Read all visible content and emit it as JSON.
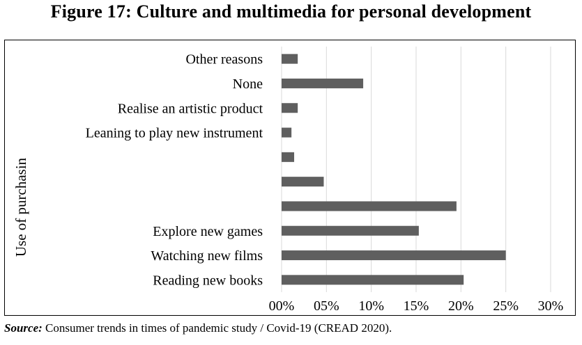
{
  "figure_title": "Figure 17: Culture and multimedia for personal development",
  "source": {
    "label": "Source:",
    "text": " Consumer trends in times of pandemic study / Covid-19 (CREAD 2020)."
  },
  "chart_data": {
    "type": "bar",
    "orientation": "horizontal",
    "ylabel": "Use of purchasin",
    "xlabel": "",
    "categories": [
      "Reading new books",
      "Watching new films",
      "Explore new games",
      "",
      "",
      "",
      "Leaning to play new instrument",
      "Realise an artistic product",
      "None",
      "Other reasons"
    ],
    "values": [
      20.3,
      25.0,
      15.3,
      19.5,
      4.7,
      1.4,
      1.1,
      1.8,
      9.1,
      1.8
    ],
    "xlim": [
      0,
      30
    ],
    "xticks": [
      "00%",
      "05%",
      "10%",
      "15%",
      "20%",
      "25%",
      "30%"
    ],
    "xtick_values": [
      0,
      5,
      10,
      15,
      20,
      25,
      30
    ],
    "grid": "vertical",
    "bar_color": "#5f5f5f",
    "grid_color": "#d9d9d9"
  }
}
